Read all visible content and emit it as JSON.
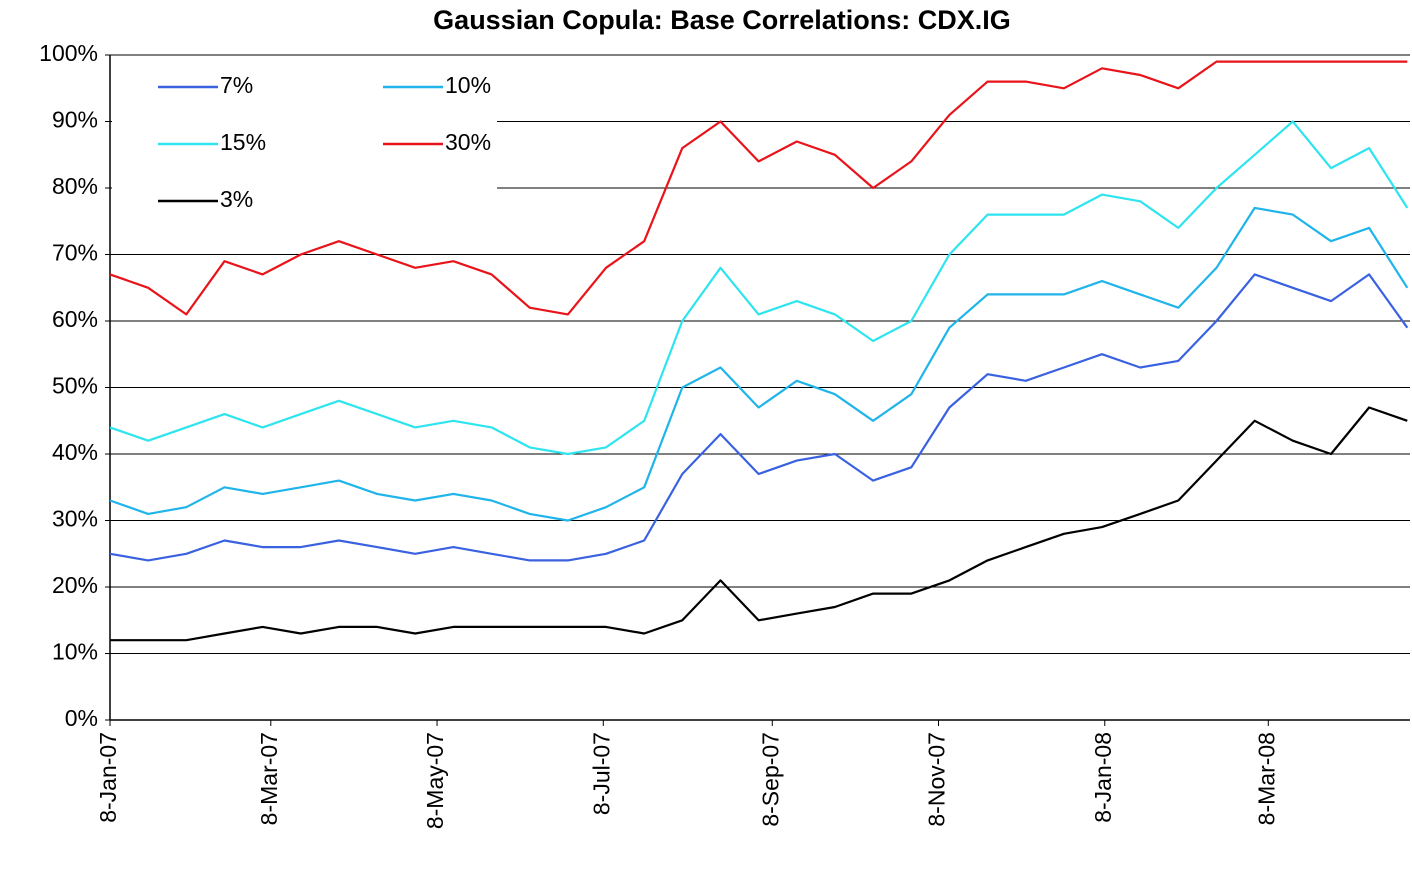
{
  "chart_data": {
    "type": "line",
    "title": "Gaussian Copula: Base Correlations: CDX.IG",
    "x": [
      "2007-01-08",
      "2007-01-22",
      "2007-02-05",
      "2007-02-19",
      "2007-03-05",
      "2007-03-19",
      "2007-04-02",
      "2007-04-16",
      "2007-04-30",
      "2007-05-14",
      "2007-05-28",
      "2007-06-11",
      "2007-06-25",
      "2007-07-09",
      "2007-07-23",
      "2007-08-06",
      "2007-08-20",
      "2007-09-03",
      "2007-09-17",
      "2007-10-01",
      "2007-10-15",
      "2007-10-29",
      "2007-11-12",
      "2007-11-26",
      "2007-12-10",
      "2007-12-24",
      "2008-01-07",
      "2008-01-21",
      "2008-02-04",
      "2008-02-18",
      "2008-03-03",
      "2008-03-17",
      "2008-03-31",
      "2008-04-14",
      "2008-04-28"
    ],
    "series": [
      {
        "name": "7%",
        "color": "#3a62e0",
        "values": [
          25,
          24,
          25,
          27,
          26,
          26,
          27,
          26,
          25,
          26,
          25,
          24,
          24,
          25,
          27,
          37,
          43,
          37,
          39,
          40,
          36,
          38,
          47,
          52,
          51,
          53,
          55,
          53,
          54,
          60,
          67,
          65,
          63,
          67,
          59
        ]
      },
      {
        "name": "10%",
        "color": "#1fb4ea",
        "values": [
          33,
          31,
          32,
          35,
          34,
          35,
          36,
          34,
          33,
          34,
          33,
          31,
          30,
          32,
          35,
          50,
          53,
          47,
          51,
          49,
          45,
          49,
          59,
          64,
          64,
          64,
          66,
          64,
          62,
          68,
          77,
          76,
          72,
          74,
          65
        ]
      },
      {
        "name": "15%",
        "color": "#2ee4ee",
        "values": [
          44,
          42,
          44,
          46,
          44,
          46,
          48,
          46,
          44,
          45,
          44,
          41,
          40,
          41,
          45,
          60,
          68,
          61,
          63,
          61,
          57,
          60,
          70,
          76,
          76,
          76,
          79,
          78,
          74,
          80,
          85,
          90,
          83,
          86,
          77
        ]
      },
      {
        "name": "30%",
        "color": "#e8141a",
        "values": [
          67,
          65,
          61,
          69,
          67,
          70,
          72,
          70,
          68,
          69,
          67,
          62,
          61,
          68,
          72,
          86,
          90,
          84,
          87,
          85,
          80,
          84,
          91,
          96,
          96,
          95,
          98,
          97,
          95,
          99,
          99,
          99,
          99,
          99,
          99
        ]
      },
      {
        "name": "3%",
        "color": "#000000",
        "values": [
          12,
          12,
          12,
          13,
          14,
          13,
          14,
          14,
          13,
          14,
          14,
          14,
          14,
          14,
          13,
          15,
          21,
          15,
          16,
          17,
          19,
          19,
          21,
          24,
          26,
          28,
          29,
          31,
          33,
          39,
          45,
          42,
          40,
          47,
          45
        ]
      }
    ],
    "xlim": [
      "2007-01-08",
      "2008-04-29"
    ],
    "xticks": [
      {
        "value": "2007-01-08",
        "label": "8-Jan-07"
      },
      {
        "value": "2007-03-08",
        "label": "8-Mar-07"
      },
      {
        "value": "2007-05-08",
        "label": "8-May-07"
      },
      {
        "value": "2007-07-08",
        "label": "8-Jul-07"
      },
      {
        "value": "2007-09-08",
        "label": "8-Sep-07"
      },
      {
        "value": "2007-11-08",
        "label": "8-Nov-07"
      },
      {
        "value": "2008-01-08",
        "label": "8-Jan-08"
      },
      {
        "value": "2008-03-08",
        "label": "8-Mar-08"
      }
    ],
    "ylim": [
      0,
      100
    ],
    "yticks": [
      {
        "value": 0,
        "label": "0%"
      },
      {
        "value": 10,
        "label": "10%"
      },
      {
        "value": 20,
        "label": "20%"
      },
      {
        "value": 30,
        "label": "30%"
      },
      {
        "value": 40,
        "label": "40%"
      },
      {
        "value": 50,
        "label": "50%"
      },
      {
        "value": 60,
        "label": "60%"
      },
      {
        "value": 70,
        "label": "70%"
      },
      {
        "value": 80,
        "label": "80%"
      },
      {
        "value": 90,
        "label": "90%"
      },
      {
        "value": 100,
        "label": "100%"
      }
    ],
    "grid": true,
    "legend": "upper left"
  }
}
